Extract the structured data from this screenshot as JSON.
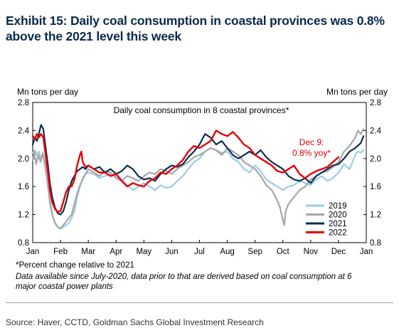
{
  "title": "Exhibit 15: Daily coal consumption in coastal provinces was 0.8% above the 2021 level this week",
  "notes": {
    "percent": "*Percent change relative to 2021",
    "data": "Data available since July-2020, data prior to that are derived based on coal consumption at 6 major coastal power plants"
  },
  "source": "Source: Haver, CCTD, Goldman Sachs Global Investment Research",
  "chart_data": {
    "type": "line",
    "title": "Daily coal consumption in 8 coastal provinces*",
    "ylabel_left": "Mn tons per day",
    "ylabel_right": "Mn tons per day",
    "ylim": [
      0.8,
      2.8
    ],
    "yticks": [
      "0.8",
      "1.2",
      "1.6",
      "2.0",
      "2.4",
      "2.8"
    ],
    "x_tick_labels": [
      "Jan",
      "Feb",
      "Mar",
      "Apr",
      "May",
      "Jun",
      "Jul",
      "Aug",
      "Sep",
      "Oct",
      "Nov",
      "Dec",
      "Jan"
    ],
    "xlim": [
      0,
      12
    ],
    "annotation": {
      "line1": "Dec 9:",
      "line2": "0.8% yoy*",
      "color": "#e00000"
    },
    "legend_position": "bottom-right",
    "grid": false,
    "series": [
      {
        "name": "2019",
        "color": "#9ccbe8",
        "width": 2.2,
        "points": [
          [
            0,
            2.08
          ],
          [
            0.08,
            2.12
          ],
          [
            0.15,
            2.05
          ],
          [
            0.22,
            2.1
          ],
          [
            0.3,
            2.0
          ],
          [
            0.38,
            2.05
          ],
          [
            0.45,
            1.95
          ],
          [
            0.5,
            1.85
          ],
          [
            0.55,
            1.6
          ],
          [
            0.62,
            1.35
          ],
          [
            0.7,
            1.2
          ],
          [
            0.78,
            1.1
          ],
          [
            0.85,
            1.05
          ],
          [
            0.92,
            1.02
          ],
          [
            1.0,
            1.0
          ],
          [
            1.1,
            1.02
          ],
          [
            1.2,
            1.05
          ],
          [
            1.3,
            1.08
          ],
          [
            1.4,
            1.15
          ],
          [
            1.5,
            1.25
          ],
          [
            1.6,
            1.45
          ],
          [
            1.7,
            1.6
          ],
          [
            1.8,
            1.72
          ],
          [
            1.9,
            1.78
          ],
          [
            2.0,
            1.8
          ],
          [
            2.2,
            1.78
          ],
          [
            2.4,
            1.72
          ],
          [
            2.6,
            1.75
          ],
          [
            2.8,
            1.78
          ],
          [
            3.0,
            1.75
          ],
          [
            3.2,
            1.7
          ],
          [
            3.4,
            1.62
          ],
          [
            3.6,
            1.55
          ],
          [
            3.8,
            1.6
          ],
          [
            4.0,
            1.65
          ],
          [
            4.2,
            1.6
          ],
          [
            4.4,
            1.55
          ],
          [
            4.6,
            1.62
          ],
          [
            4.8,
            1.58
          ],
          [
            5.0,
            1.6
          ],
          [
            5.2,
            1.68
          ],
          [
            5.4,
            1.75
          ],
          [
            5.6,
            1.85
          ],
          [
            5.8,
            1.95
          ],
          [
            6.0,
            2.0
          ],
          [
            6.2,
            2.1
          ],
          [
            6.4,
            2.15
          ],
          [
            6.6,
            2.12
          ],
          [
            6.8,
            2.08
          ],
          [
            7.0,
            2.1
          ],
          [
            7.2,
            2.0
          ],
          [
            7.4,
            1.95
          ],
          [
            7.6,
            1.85
          ],
          [
            7.8,
            1.8
          ],
          [
            8.0,
            1.9
          ],
          [
            8.2,
            1.82
          ],
          [
            8.4,
            1.7
          ],
          [
            8.6,
            1.65
          ],
          [
            8.8,
            1.6
          ],
          [
            9.0,
            1.55
          ],
          [
            9.2,
            1.6
          ],
          [
            9.4,
            1.62
          ],
          [
            9.6,
            1.68
          ],
          [
            9.8,
            1.65
          ],
          [
            10.0,
            1.62
          ],
          [
            10.2,
            1.7
          ],
          [
            10.4,
            1.75
          ],
          [
            10.6,
            1.68
          ],
          [
            10.8,
            1.72
          ],
          [
            11.0,
            1.8
          ],
          [
            11.2,
            1.92
          ],
          [
            11.4,
            1.85
          ],
          [
            11.6,
            2.05
          ],
          [
            11.7,
            2.1
          ],
          [
            11.8,
            2.08
          ],
          [
            11.9,
            2.12
          ]
        ]
      },
      {
        "name": "2020",
        "color": "#a6a6a6",
        "width": 2.2,
        "points": [
          [
            0,
            1.98
          ],
          [
            0.06,
            2.1
          ],
          [
            0.12,
            1.92
          ],
          [
            0.2,
            2.05
          ],
          [
            0.28,
            1.95
          ],
          [
            0.36,
            2.08
          ],
          [
            0.44,
            1.9
          ],
          [
            0.52,
            1.7
          ],
          [
            0.6,
            1.45
          ],
          [
            0.7,
            1.2
          ],
          [
            0.8,
            1.08
          ],
          [
            0.9,
            1.02
          ],
          [
            1.0,
            1.0
          ],
          [
            1.1,
            1.05
          ],
          [
            1.2,
            1.1
          ],
          [
            1.3,
            1.15
          ],
          [
            1.4,
            1.2
          ],
          [
            1.5,
            1.35
          ],
          [
            1.6,
            1.5
          ],
          [
            1.7,
            1.62
          ],
          [
            1.8,
            1.7
          ],
          [
            1.9,
            1.78
          ],
          [
            2.0,
            1.85
          ],
          [
            2.2,
            1.8
          ],
          [
            2.4,
            1.75
          ],
          [
            2.6,
            1.82
          ],
          [
            2.8,
            1.8
          ],
          [
            3.0,
            1.72
          ],
          [
            3.2,
            1.68
          ],
          [
            3.4,
            1.75
          ],
          [
            3.6,
            1.72
          ],
          [
            3.8,
            1.68
          ],
          [
            4.0,
            1.75
          ],
          [
            4.2,
            1.8
          ],
          [
            4.4,
            1.78
          ],
          [
            4.6,
            1.85
          ],
          [
            4.8,
            1.82
          ],
          [
            5.0,
            1.78
          ],
          [
            5.2,
            1.85
          ],
          [
            5.4,
            1.9
          ],
          [
            5.6,
            1.95
          ],
          [
            5.8,
            2.02
          ],
          [
            6.0,
            2.05
          ],
          [
            6.2,
            2.1
          ],
          [
            6.4,
            2.15
          ],
          [
            6.6,
            2.12
          ],
          [
            6.8,
            2.05
          ],
          [
            7.0,
            2.15
          ],
          [
            7.2,
            2.1
          ],
          [
            7.4,
            2.05
          ],
          [
            7.6,
            1.95
          ],
          [
            7.8,
            1.9
          ],
          [
            8.0,
            1.85
          ],
          [
            8.2,
            1.75
          ],
          [
            8.4,
            1.62
          ],
          [
            8.6,
            1.55
          ],
          [
            8.8,
            1.4
          ],
          [
            8.9,
            1.3
          ],
          [
            9.0,
            1.12
          ],
          [
            9.05,
            1.05
          ],
          [
            9.1,
            1.25
          ],
          [
            9.2,
            1.35
          ],
          [
            9.4,
            1.45
          ],
          [
            9.6,
            1.55
          ],
          [
            9.8,
            1.6
          ],
          [
            10.0,
            1.7
          ],
          [
            10.2,
            1.75
          ],
          [
            10.4,
            1.8
          ],
          [
            10.6,
            1.82
          ],
          [
            10.8,
            1.88
          ],
          [
            11.0,
            1.95
          ],
          [
            11.2,
            2.1
          ],
          [
            11.4,
            2.18
          ],
          [
            11.6,
            2.3
          ],
          [
            11.7,
            2.4
          ],
          [
            11.8,
            2.35
          ],
          [
            11.9,
            2.42
          ]
        ]
      },
      {
        "name": "2021",
        "color": "#0a2e52",
        "width": 2.2,
        "points": [
          [
            0,
            2.2
          ],
          [
            0.08,
            2.3
          ],
          [
            0.15,
            2.25
          ],
          [
            0.22,
            2.35
          ],
          [
            0.3,
            2.48
          ],
          [
            0.38,
            2.42
          ],
          [
            0.45,
            2.2
          ],
          [
            0.55,
            1.9
          ],
          [
            0.62,
            1.65
          ],
          [
            0.7,
            1.45
          ],
          [
            0.8,
            1.3
          ],
          [
            0.9,
            1.22
          ],
          [
            1.0,
            1.2
          ],
          [
            1.1,
            1.25
          ],
          [
            1.2,
            1.38
          ],
          [
            1.3,
            1.55
          ],
          [
            1.4,
            1.68
          ],
          [
            1.5,
            1.75
          ],
          [
            1.6,
            1.82
          ],
          [
            1.7,
            1.85
          ],
          [
            1.8,
            1.88
          ],
          [
            1.9,
            1.85
          ],
          [
            2.0,
            1.9
          ],
          [
            2.2,
            1.85
          ],
          [
            2.4,
            1.88
          ],
          [
            2.6,
            1.8
          ],
          [
            2.8,
            1.85
          ],
          [
            3.0,
            1.78
          ],
          [
            3.2,
            1.82
          ],
          [
            3.4,
            1.9
          ],
          [
            3.6,
            1.85
          ],
          [
            3.8,
            1.75
          ],
          [
            4.0,
            1.7
          ],
          [
            4.2,
            1.72
          ],
          [
            4.4,
            1.68
          ],
          [
            4.6,
            1.78
          ],
          [
            4.8,
            1.85
          ],
          [
            5.0,
            1.9
          ],
          [
            5.2,
            1.88
          ],
          [
            5.4,
            1.92
          ],
          [
            5.6,
            2.02
          ],
          [
            5.8,
            2.1
          ],
          [
            6.0,
            2.2
          ],
          [
            6.2,
            2.35
          ],
          [
            6.4,
            2.3
          ],
          [
            6.6,
            2.2
          ],
          [
            6.8,
            2.25
          ],
          [
            7.0,
            2.15
          ],
          [
            7.2,
            2.05
          ],
          [
            7.4,
            2.0
          ],
          [
            7.6,
            2.05
          ],
          [
            7.8,
            2.1
          ],
          [
            8.0,
            2.05
          ],
          [
            8.2,
            2.12
          ],
          [
            8.4,
            2.02
          ],
          [
            8.6,
            1.95
          ],
          [
            8.8,
            1.9
          ],
          [
            9.0,
            1.85
          ],
          [
            9.2,
            1.75
          ],
          [
            9.4,
            1.7
          ],
          [
            9.6,
            1.68
          ],
          [
            9.8,
            1.72
          ],
          [
            10.0,
            1.65
          ],
          [
            10.2,
            1.75
          ],
          [
            10.4,
            1.8
          ],
          [
            10.6,
            1.85
          ],
          [
            10.8,
            1.9
          ],
          [
            11.0,
            1.92
          ],
          [
            11.2,
            2.0
          ],
          [
            11.4,
            2.1
          ],
          [
            11.6,
            2.15
          ],
          [
            11.8,
            2.22
          ],
          [
            11.9,
            2.32
          ]
        ]
      },
      {
        "name": "2022",
        "color": "#e60000",
        "width": 2.4,
        "points": [
          [
            0,
            2.32
          ],
          [
            0.08,
            2.28
          ],
          [
            0.15,
            2.35
          ],
          [
            0.22,
            2.3
          ],
          [
            0.3,
            2.35
          ],
          [
            0.38,
            2.3
          ],
          [
            0.45,
            2.1
          ],
          [
            0.55,
            1.8
          ],
          [
            0.62,
            1.55
          ],
          [
            0.7,
            1.38
          ],
          [
            0.8,
            1.28
          ],
          [
            0.9,
            1.24
          ],
          [
            1.0,
            1.25
          ],
          [
            1.1,
            1.38
          ],
          [
            1.2,
            1.52
          ],
          [
            1.3,
            1.6
          ],
          [
            1.4,
            1.6
          ],
          [
            1.5,
            1.7
          ],
          [
            1.6,
            1.9
          ],
          [
            1.7,
            2.05
          ],
          [
            1.75,
            2.1
          ],
          [
            1.8,
            1.95
          ],
          [
            1.9,
            1.88
          ],
          [
            2.0,
            1.9
          ],
          [
            2.2,
            1.85
          ],
          [
            2.4,
            1.8
          ],
          [
            2.6,
            1.8
          ],
          [
            2.8,
            1.75
          ],
          [
            3.0,
            1.78
          ],
          [
            3.2,
            1.68
          ],
          [
            3.4,
            1.6
          ],
          [
            3.6,
            1.65
          ],
          [
            3.8,
            1.62
          ],
          [
            4.0,
            1.6
          ],
          [
            4.2,
            1.68
          ],
          [
            4.4,
            1.72
          ],
          [
            4.6,
            1.8
          ],
          [
            4.8,
            1.78
          ],
          [
            5.0,
            1.85
          ],
          [
            5.2,
            1.9
          ],
          [
            5.4,
            1.98
          ],
          [
            5.6,
            2.1
          ],
          [
            5.8,
            2.18
          ],
          [
            6.0,
            2.15
          ],
          [
            6.2,
            2.2
          ],
          [
            6.4,
            2.25
          ],
          [
            6.6,
            2.4
          ],
          [
            6.8,
            2.35
          ],
          [
            7.0,
            2.32
          ],
          [
            7.2,
            2.38
          ],
          [
            7.4,
            2.3
          ],
          [
            7.6,
            2.2
          ],
          [
            7.8,
            2.15
          ],
          [
            8.0,
            2.05
          ],
          [
            8.2,
            2.0
          ],
          [
            8.4,
            1.95
          ],
          [
            8.6,
            1.9
          ],
          [
            8.8,
            1.82
          ],
          [
            9.0,
            1.8
          ],
          [
            9.2,
            1.85
          ],
          [
            9.4,
            1.9
          ],
          [
            9.6,
            1.78
          ],
          [
            9.8,
            1.72
          ],
          [
            10.0,
            1.78
          ],
          [
            10.2,
            1.82
          ],
          [
            10.4,
            1.85
          ],
          [
            10.6,
            1.88
          ],
          [
            10.8,
            1.95
          ],
          [
            11.0,
            2.02
          ]
        ]
      }
    ]
  }
}
